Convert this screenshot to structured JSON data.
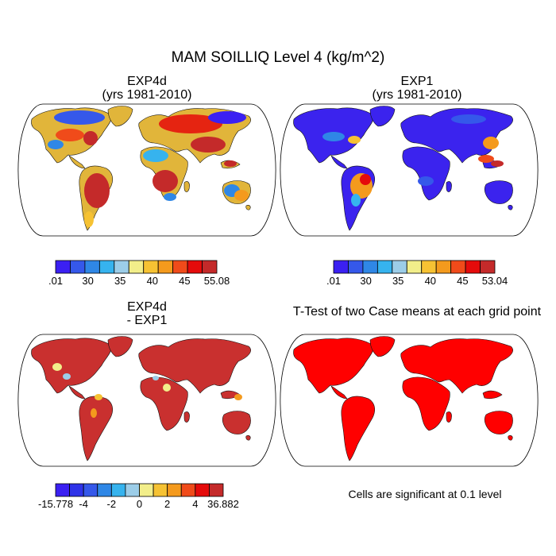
{
  "title": "MAM SOILLIQ Level 4 (kg/m^2)",
  "panels": [
    {
      "title_line1": "EXP4d",
      "title_line2": "(yrs 1981-2010)"
    },
    {
      "title_line1": "EXP1",
      "title_line2": "(yrs 1981-2010)"
    },
    {
      "title_line1": "EXP4d",
      "title_line2": "- EXP1"
    },
    {
      "title_line1": "T-Test of two Case means at each grid point",
      "title_line2": ""
    }
  ],
  "colorbars": [
    {
      "labels": [
        ".01",
        "30",
        "35",
        "40",
        "45",
        "55.08"
      ],
      "colors": [
        "#3b20f2",
        "#3558ea",
        "#2f87e6",
        "#36b3ee",
        "#9ccde8",
        "#f2ee8a",
        "#f6c233",
        "#f49a1d",
        "#f04b1a",
        "#e50b0b",
        "#c42a2a"
      ]
    },
    {
      "labels": [
        ".01",
        "30",
        "35",
        "40",
        "45",
        "53.04"
      ],
      "colors": [
        "#3b20f2",
        "#3558ea",
        "#2f87e6",
        "#36b3ee",
        "#9ccde8",
        "#f2ee8a",
        "#f6c233",
        "#f49a1d",
        "#f04b1a",
        "#e50b0b",
        "#c42a2a"
      ]
    },
    {
      "labels": [
        "-15.778",
        "-4",
        "-2",
        "0",
        "2",
        "4",
        "36.882"
      ],
      "colors": [
        "#3b20f2",
        "#2f33e8",
        "#3558ea",
        "#2f87e6",
        "#36b3ee",
        "#9ccde8",
        "#f2ee8a",
        "#f6c233",
        "#f49a1d",
        "#f04b1a",
        "#e50b0b",
        "#c42a2a"
      ]
    }
  ],
  "footnote": "Cells are significant at 0.1 level",
  "map_colors": {
    "p1_base": "#e1b53a",
    "p2_base": "#3b23ee",
    "p3_base": "#c9302f",
    "p4_base": "#ff0000"
  }
}
